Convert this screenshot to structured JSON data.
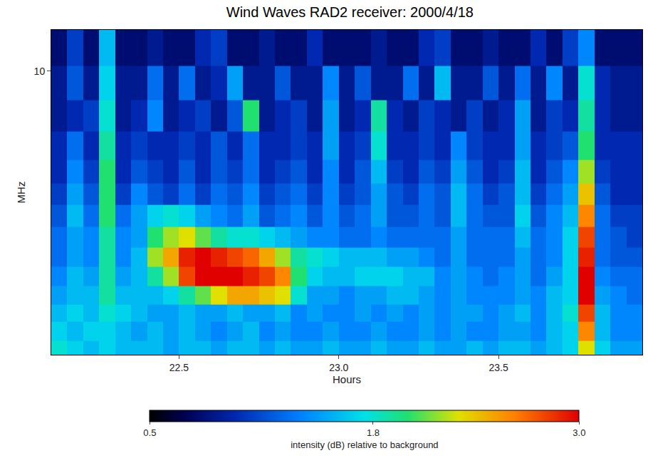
{
  "chart_data": {
    "type": "heatmap",
    "title": "Wind Waves RAD2 receiver: 2000/4/18",
    "x_label": "Hours",
    "y_label": "MHz",
    "log": "y",
    "xlim": [
      22.1,
      23.95
    ],
    "ylim": [
      1.075,
      13.825
    ],
    "xticks": [
      22.5,
      {
        "value": 23,
        "label": "23.0"
      },
      23.5
    ],
    "yticks": [
      10
    ],
    "x": [
      22.125,
      22.175,
      22.225,
      22.275,
      22.325,
      22.375,
      22.425,
      22.475,
      22.525,
      22.575,
      22.625,
      22.675,
      22.725,
      22.775,
      22.825,
      22.875,
      22.925,
      22.975,
      23.025,
      23.075,
      23.125,
      23.175,
      23.225,
      23.275,
      23.325,
      23.375,
      23.425,
      23.475,
      23.525,
      23.575,
      23.625,
      23.675,
      23.725,
      23.775,
      23.825,
      23.875,
      23.925
    ],
    "y": [
      1.1,
      1.3,
      1.5,
      1.7,
      2.0,
      2.3,
      2.7,
      3.2,
      3.8,
      4.5,
      5.5,
      7.0,
      9.0,
      12.0
    ],
    "z": [
      [
        1.8,
        1.7,
        1.6,
        1.7,
        1.6,
        1.6,
        1.6,
        1.5,
        1.6,
        1.6,
        1.5,
        1.6,
        1.6,
        1.5,
        1.6,
        1.5,
        1.5,
        1.6,
        1.5,
        1.5,
        1.6,
        1.5,
        1.5,
        1.6,
        1.5,
        1.5,
        1.6,
        1.5,
        1.6,
        1.6,
        1.5,
        1.6,
        1.7,
        2.3,
        1.7,
        1.5,
        1.5
      ],
      [
        1.7,
        1.6,
        1.7,
        1.7,
        1.6,
        1.5,
        1.6,
        1.5,
        1.6,
        1.5,
        1.4,
        1.5,
        1.6,
        1.4,
        1.5,
        1.4,
        1.4,
        1.5,
        1.4,
        1.4,
        1.5,
        1.4,
        1.4,
        1.5,
        1.4,
        1.5,
        1.4,
        1.4,
        1.5,
        1.5,
        1.4,
        1.6,
        1.7,
        2.6,
        1.6,
        1.4,
        1.4
      ],
      [
        1.6,
        1.7,
        1.6,
        1.8,
        1.7,
        1.6,
        1.5,
        1.5,
        1.6,
        1.5,
        1.5,
        1.6,
        1.5,
        1.5,
        1.6,
        1.4,
        1.5,
        1.4,
        1.4,
        1.5,
        1.4,
        1.5,
        1.4,
        1.5,
        1.4,
        1.5,
        1.5,
        1.4,
        1.5,
        1.6,
        1.4,
        1.6,
        1.8,
        2.8,
        1.6,
        1.4,
        1.4
      ],
      [
        1.5,
        1.6,
        1.6,
        1.9,
        1.6,
        1.6,
        1.6,
        1.7,
        1.9,
        2.1,
        2.3,
        2.5,
        2.5,
        2.4,
        2.3,
        1.8,
        1.5,
        1.5,
        1.4,
        1.5,
        1.5,
        1.6,
        1.6,
        1.5,
        1.4,
        1.5,
        1.4,
        1.4,
        1.4,
        1.5,
        1.4,
        1.6,
        1.7,
        3.0,
        1.5,
        1.4,
        1.3
      ],
      [
        1.4,
        1.6,
        1.5,
        1.9,
        1.5,
        1.6,
        1.9,
        2.2,
        2.8,
        3.0,
        3.0,
        3.0,
        2.9,
        2.8,
        2.6,
        2.0,
        1.7,
        1.6,
        1.6,
        1.7,
        1.7,
        1.7,
        1.6,
        1.6,
        1.4,
        1.5,
        1.4,
        1.3,
        1.4,
        1.5,
        1.3,
        1.5,
        1.7,
        3.0,
        1.4,
        1.3,
        1.3
      ],
      [
        1.3,
        1.5,
        1.4,
        1.9,
        1.4,
        1.6,
        2.2,
        2.5,
        2.9,
        3.0,
        2.9,
        2.8,
        2.7,
        2.5,
        2.2,
        1.9,
        1.8,
        1.7,
        1.6,
        1.6,
        1.6,
        1.5,
        1.5,
        1.4,
        1.3,
        1.5,
        1.3,
        1.3,
        1.3,
        1.5,
        1.3,
        1.4,
        1.7,
        2.9,
        1.3,
        1.2,
        1.2
      ],
      [
        1.3,
        1.5,
        1.4,
        1.9,
        1.4,
        1.5,
        2.0,
        2.2,
        2.3,
        2.1,
        1.9,
        1.8,
        1.8,
        1.7,
        1.6,
        1.5,
        1.4,
        1.4,
        1.3,
        1.3,
        1.4,
        1.3,
        1.3,
        1.3,
        1.3,
        1.5,
        1.3,
        1.3,
        1.3,
        1.6,
        1.3,
        1.4,
        1.7,
        2.8,
        1.3,
        1.2,
        1.1
      ],
      [
        1.2,
        1.6,
        1.3,
        2.0,
        1.3,
        1.5,
        1.7,
        1.8,
        1.7,
        1.5,
        1.4,
        1.3,
        1.5,
        1.2,
        1.3,
        1.4,
        1.2,
        1.4,
        1.2,
        1.3,
        1.5,
        1.2,
        1.2,
        1.3,
        1.2,
        1.6,
        1.3,
        1.2,
        1.2,
        1.7,
        1.2,
        1.4,
        1.6,
        2.6,
        1.3,
        1.1,
        1.1
      ],
      [
        1.1,
        1.5,
        1.2,
        2.0,
        1.1,
        1.4,
        1.2,
        1.1,
        1.3,
        1.1,
        1.3,
        1.2,
        1.4,
        1.1,
        1.2,
        1.3,
        1.1,
        1.4,
        1.1,
        1.2,
        1.5,
        1.2,
        1.1,
        1.3,
        1.2,
        1.6,
        1.3,
        1.1,
        1.2,
        1.6,
        1.1,
        1.3,
        1.5,
        2.4,
        1.2,
        1.0,
        1.0
      ],
      [
        1.0,
        1.4,
        1.1,
        2.0,
        1.0,
        1.2,
        1.1,
        1.0,
        1.2,
        1.0,
        1.2,
        1.1,
        1.3,
        1.0,
        1.1,
        1.2,
        1.0,
        1.4,
        1.0,
        1.2,
        1.6,
        1.1,
        1.0,
        1.2,
        1.1,
        1.5,
        1.2,
        1.0,
        1.1,
        1.6,
        1.0,
        1.2,
        1.4,
        2.2,
        1.1,
        1.0,
        1.0
      ],
      [
        1.0,
        1.3,
        1.0,
        1.9,
        1.0,
        1.1,
        1.0,
        1.0,
        1.1,
        1.0,
        1.2,
        1.0,
        1.3,
        1.0,
        1.0,
        1.1,
        1.0,
        1.5,
        1.0,
        1.1,
        1.8,
        1.0,
        1.0,
        1.1,
        1.0,
        1.4,
        1.1,
        1.0,
        1.0,
        1.5,
        1.0,
        1.1,
        1.2,
        2.0,
        1.0,
        1.0,
        1.0
      ],
      [
        0.9,
        1.0,
        1.1,
        1.8,
        0.9,
        1.0,
        1.4,
        0.9,
        1.0,
        1.1,
        0.9,
        1.2,
        2.0,
        0.9,
        1.0,
        1.1,
        0.9,
        1.5,
        0.9,
        1.0,
        1.9,
        1.0,
        0.9,
        1.1,
        1.0,
        0.9,
        1.1,
        0.9,
        1.0,
        1.5,
        0.9,
        1.1,
        1.0,
        1.9,
        1.0,
        0.9,
        0.9
      ],
      [
        0.9,
        1.2,
        0.9,
        1.7,
        0.9,
        0.9,
        1.3,
        0.9,
        1.3,
        0.9,
        1.0,
        1.5,
        0.9,
        0.9,
        1.2,
        0.9,
        0.9,
        1.4,
        0.9,
        1.2,
        0.9,
        0.9,
        1.3,
        0.9,
        1.6,
        0.9,
        0.9,
        1.2,
        0.9,
        1.3,
        0.9,
        1.4,
        0.9,
        1.8,
        1.0,
        0.9,
        0.9
      ],
      [
        0.8,
        1.1,
        0.8,
        1.6,
        0.8,
        0.8,
        0.9,
        0.8,
        0.8,
        1.0,
        1.1,
        0.8,
        0.8,
        0.9,
        0.8,
        0.8,
        1.0,
        0.8,
        0.8,
        0.8,
        0.9,
        0.8,
        0.8,
        1.0,
        1.1,
        0.8,
        0.8,
        0.9,
        0.8,
        0.8,
        1.0,
        0.8,
        1.1,
        1.4,
        0.8,
        0.8,
        0.8
      ]
    ],
    "colorbar_title": "intensity (dB) relative to background",
    "colorbar_range": [
      0.5,
      3.0
    ],
    "colorbar_ticks": [
      0.5,
      1.8,
      {
        "value": 3,
        "label": "3.0"
      }
    ]
  }
}
